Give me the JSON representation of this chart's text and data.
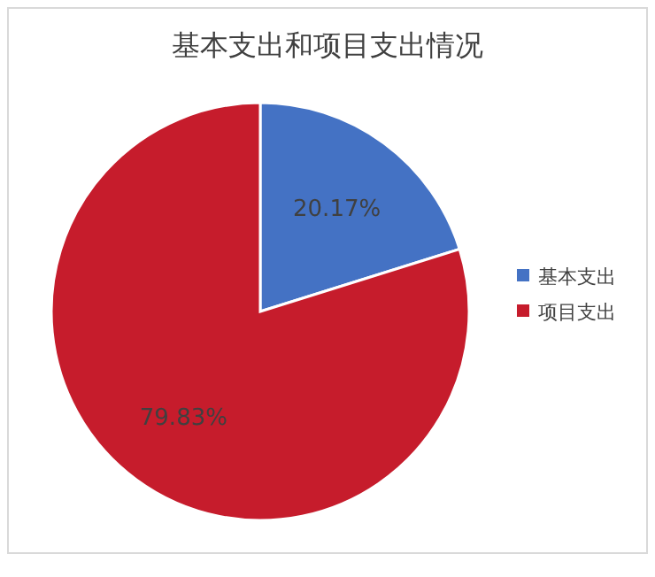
{
  "chart_data": {
    "type": "pie",
    "title": "基本支出和项目支出情况",
    "categories": [
      "基本支出",
      "项目支出"
    ],
    "values": [
      20.17,
      79.83
    ],
    "value_labels": [
      "20.17%",
      "79.83%"
    ],
    "colors": [
      "#4472c4",
      "#c61c2c"
    ],
    "legend": "right"
  }
}
